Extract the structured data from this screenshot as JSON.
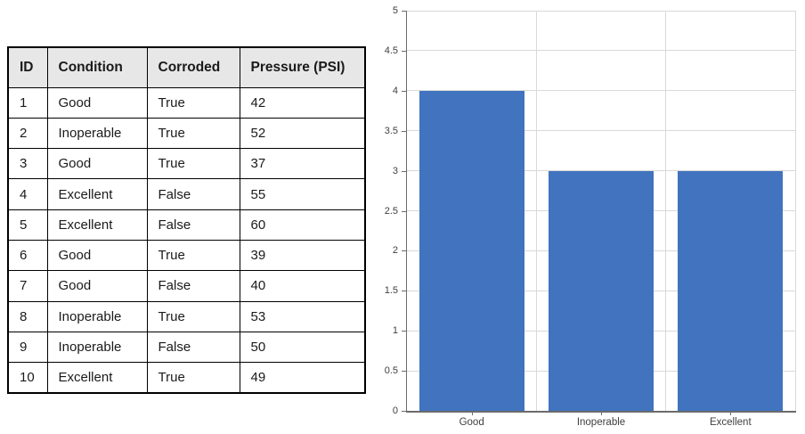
{
  "table": {
    "headers": [
      "ID",
      "Condition",
      "Corroded",
      "Pressure (PSI)"
    ],
    "rows": [
      [
        "1",
        "Good",
        "True",
        "42"
      ],
      [
        "2",
        "Inoperable",
        "True",
        "52"
      ],
      [
        "3",
        "Good",
        "True",
        "37"
      ],
      [
        "4",
        "Excellent",
        "False",
        "55"
      ],
      [
        "5",
        "Excellent",
        "False",
        "60"
      ],
      [
        "6",
        "Good",
        "True",
        "39"
      ],
      [
        "7",
        "Good",
        "False",
        "40"
      ],
      [
        "8",
        "Inoperable",
        "True",
        "53"
      ],
      [
        "9",
        "Inoperable",
        "False",
        "50"
      ],
      [
        "10",
        "Excellent",
        "True",
        "49"
      ]
    ],
    "header_bg": "#e7e7e7",
    "border_color": "#000000"
  },
  "chart_data": {
    "type": "bar",
    "title": "",
    "xlabel": "",
    "ylabel": "",
    "categories": [
      "Good",
      "Inoperable",
      "Excellent"
    ],
    "values": [
      4,
      3,
      3
    ],
    "ylim": [
      0,
      5
    ],
    "ytick_step": 0.5,
    "ytick_labels": [
      "5",
      "4.5",
      "4",
      "3.5",
      "3",
      "2.5",
      "2",
      "1.5",
      "1",
      "0.5",
      "0"
    ],
    "grid": true,
    "legend_position": "none",
    "colors": {
      "bar": "#4173be",
      "gridline": "#d9d9d9",
      "axis": "#6b6b6b",
      "tick_label": "#404040"
    }
  }
}
